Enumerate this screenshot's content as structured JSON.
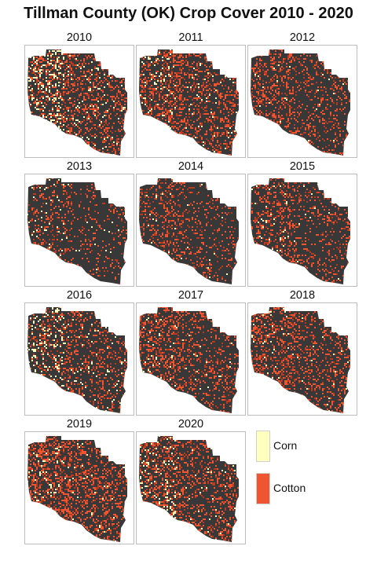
{
  "title": "Tillman County (OK) Crop Cover 2010 - 2020",
  "panels": [
    {
      "year": "2010",
      "corn_level": 0.1,
      "cotton_level": 0.42
    },
    {
      "year": "2011",
      "corn_level": 0.05,
      "cotton_level": 0.5
    },
    {
      "year": "2012",
      "corn_level": 0.01,
      "cotton_level": 0.42
    },
    {
      "year": "2013",
      "corn_level": 0.02,
      "cotton_level": 0.24
    },
    {
      "year": "2014",
      "corn_level": 0.01,
      "cotton_level": 0.34
    },
    {
      "year": "2015",
      "corn_level": 0.02,
      "cotton_level": 0.38
    },
    {
      "year": "2016",
      "corn_level": 0.07,
      "cotton_level": 0.36
    },
    {
      "year": "2017",
      "corn_level": 0.02,
      "cotton_level": 0.46
    },
    {
      "year": "2018",
      "corn_level": 0.02,
      "cotton_level": 0.5
    },
    {
      "year": "2019",
      "corn_level": 0.03,
      "cotton_level": 0.58
    },
    {
      "year": "2020",
      "corn_level": 0.05,
      "cotton_level": 0.48
    }
  ],
  "legend": {
    "items": [
      {
        "label": "Corn",
        "color": "#FFFFC0"
      },
      {
        "label": "Cotton",
        "color": "#EE5530"
      }
    ]
  },
  "colors": {
    "county_background": "#383838",
    "corn": "#FFFFC0",
    "cotton": "#EE5530",
    "cotton_dark": "#B83A20"
  }
}
